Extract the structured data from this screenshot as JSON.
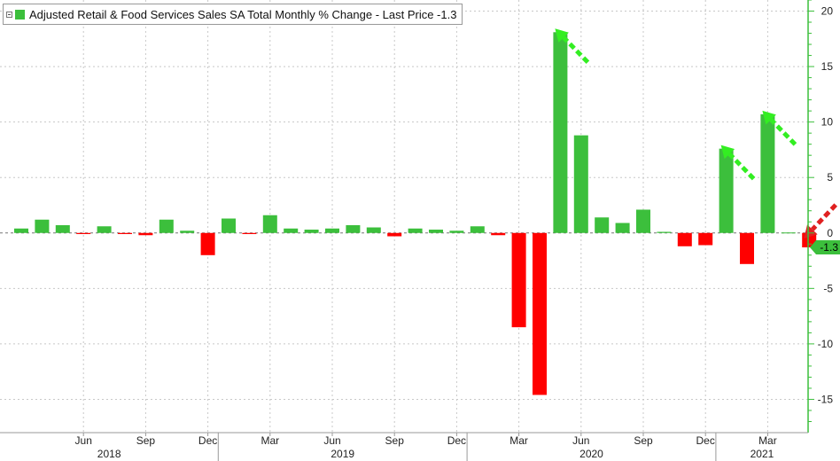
{
  "legend": {
    "label": "Adjusted Retail & Food Services Sales SA Total Monthly % Change - Last Price -1.3",
    "color": "#3cbf3c"
  },
  "colors": {
    "positive": "#3cbf3c",
    "negative": "#ff0000",
    "axis": "#3cbf3c",
    "last_badge": "#3cbf3c"
  },
  "last_price_label": "-1.3",
  "chart_data": {
    "type": "bar",
    "categories": [
      "2018-03",
      "2018-04",
      "2018-05",
      "2018-06",
      "2018-07",
      "2018-08",
      "2018-09",
      "2018-10",
      "2018-11",
      "2018-12",
      "2019-01",
      "2019-02",
      "2019-03",
      "2019-04",
      "2019-05",
      "2019-06",
      "2019-07",
      "2019-08",
      "2019-09",
      "2019-10",
      "2019-11",
      "2019-12",
      "2020-01",
      "2020-02",
      "2020-03",
      "2020-04",
      "2020-05",
      "2020-06",
      "2020-07",
      "2020-08",
      "2020-09",
      "2020-10",
      "2020-11",
      "2020-12",
      "2021-01",
      "2021-02",
      "2021-03",
      "2021-04",
      "2021-05"
    ],
    "values": [
      0.4,
      1.2,
      0.7,
      -0.1,
      0.6,
      -0.1,
      -0.2,
      1.2,
      0.2,
      -2.0,
      1.3,
      -0.1,
      1.6,
      0.4,
      0.3,
      0.4,
      0.7,
      0.5,
      -0.3,
      0.4,
      0.3,
      0.2,
      0.6,
      -0.2,
      -8.5,
      -14.6,
      18.1,
      8.8,
      1.4,
      0.9,
      2.1,
      0.1,
      -1.2,
      -1.1,
      7.6,
      -2.8,
      10.7,
      0.0,
      -1.3
    ],
    "ylim": [
      -18,
      21
    ],
    "yticks": [
      -15,
      -10,
      -5,
      0,
      5,
      10,
      15,
      20
    ],
    "month_ticks": [
      "Jun",
      "Sep",
      "Dec",
      "Mar",
      "Jun",
      "Sep",
      "Dec",
      "Mar",
      "Jun",
      "Sep",
      "Dec",
      "Mar"
    ],
    "year_labels": [
      "2018",
      "2019",
      "2020",
      "2021"
    ],
    "annotations": [
      {
        "type": "arrow",
        "color": "#33ee22",
        "target": "2020-05"
      },
      {
        "type": "arrow",
        "color": "#33ee22",
        "target": "2021-01"
      },
      {
        "type": "arrow",
        "color": "#33ee22",
        "target": "2021-03"
      },
      {
        "type": "arrow",
        "color": "#e02020",
        "target": "2021-05"
      }
    ],
    "grid": true,
    "legend_position": "top-left"
  }
}
